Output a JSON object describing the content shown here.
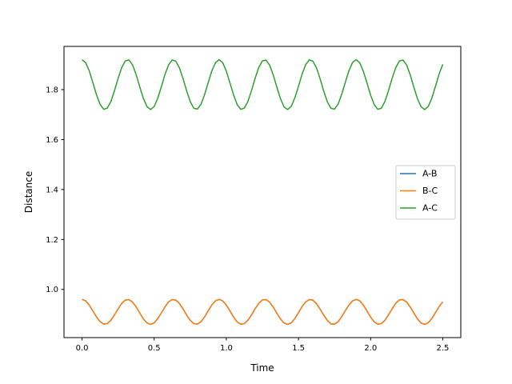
{
  "chart_data": {
    "type": "line",
    "title": "",
    "xlabel": "Time",
    "ylabel": "Distance",
    "xlim": [
      -0.125,
      2.625
    ],
    "ylim": [
      0.807,
      1.973
    ],
    "xticks": [
      0.0,
      0.5,
      1.0,
      1.5,
      2.0,
      2.5
    ],
    "xtick_labels": [
      "0.0",
      "0.5",
      "1.0",
      "1.5",
      "2.0",
      "2.5"
    ],
    "yticks": [
      1.0,
      1.2,
      1.4,
      1.6,
      1.8
    ],
    "ytick_labels": [
      "1.0",
      "1.2",
      "1.4",
      "1.6",
      "1.8"
    ],
    "grid": false,
    "legend": "center-right",
    "x": [
      0,
      0.025,
      0.05,
      0.075,
      0.1,
      0.125,
      0.15,
      0.175,
      0.2,
      0.225,
      0.25,
      0.275,
      0.3,
      0.325,
      0.35,
      0.375,
      0.4,
      0.425,
      0.45,
      0.475,
      0.5,
      0.525,
      0.55,
      0.575,
      0.6,
      0.625,
      0.65,
      0.675,
      0.7,
      0.725,
      0.75,
      0.775,
      0.8,
      0.825,
      0.85,
      0.875,
      0.9,
      0.925,
      0.95,
      0.975,
      1.0,
      1.025,
      1.05,
      1.075,
      1.1,
      1.125,
      1.15,
      1.175,
      1.2,
      1.225,
      1.25,
      1.275,
      1.3,
      1.325,
      1.35,
      1.375,
      1.4,
      1.425,
      1.45,
      1.475,
      1.5,
      1.525,
      1.55,
      1.575,
      1.6,
      1.625,
      1.65,
      1.675,
      1.7,
      1.725,
      1.75,
      1.775,
      1.8,
      1.825,
      1.85,
      1.875,
      1.9,
      1.925,
      1.95,
      1.975,
      2.0,
      2.025,
      2.05,
      2.075,
      2.1,
      2.125,
      2.15,
      2.175,
      2.2,
      2.225,
      2.25,
      2.275,
      2.3,
      2.325,
      2.35,
      2.375,
      2.4,
      2.425,
      2.45,
      2.475,
      2.5
    ],
    "series": [
      {
        "name": "A-B",
        "color": "#1f77b4",
        "values": [
          0.96,
          0.954,
          0.937,
          0.914,
          0.89,
          0.871,
          0.861,
          0.863,
          0.876,
          0.898,
          0.922,
          0.944,
          0.957,
          0.959,
          0.949,
          0.93,
          0.906,
          0.882,
          0.866,
          0.86,
          0.866,
          0.883,
          0.906,
          0.93,
          0.95,
          0.959,
          0.957,
          0.944,
          0.922,
          0.897,
          0.876,
          0.863,
          0.861,
          0.871,
          0.89,
          0.915,
          0.938,
          0.954,
          0.96,
          0.954,
          0.937,
          0.914,
          0.889,
          0.87,
          0.861,
          0.863,
          0.877,
          0.898,
          0.923,
          0.944,
          0.958,
          0.959,
          0.949,
          0.929,
          0.905,
          0.882,
          0.866,
          0.86,
          0.866,
          0.883,
          0.907,
          0.931,
          0.95,
          0.959,
          0.957,
          0.943,
          0.921,
          0.897,
          0.876,
          0.862,
          0.861,
          0.871,
          0.891,
          0.915,
          0.938,
          0.954,
          0.96,
          0.954,
          0.937,
          0.913,
          0.889,
          0.87,
          0.861,
          0.863,
          0.877,
          0.899,
          0.923,
          0.945,
          0.958,
          0.959,
          0.949,
          0.929,
          0.905,
          0.882,
          0.865,
          0.86,
          0.867,
          0.884,
          0.907,
          0.931,
          0.95
        ]
      },
      {
        "name": "B-C",
        "color": "#ff7f0e",
        "values": [
          0.96,
          0.954,
          0.937,
          0.914,
          0.89,
          0.871,
          0.861,
          0.863,
          0.876,
          0.898,
          0.922,
          0.944,
          0.957,
          0.959,
          0.949,
          0.93,
          0.906,
          0.882,
          0.866,
          0.86,
          0.866,
          0.883,
          0.906,
          0.93,
          0.95,
          0.959,
          0.957,
          0.944,
          0.922,
          0.897,
          0.876,
          0.863,
          0.861,
          0.871,
          0.89,
          0.915,
          0.938,
          0.954,
          0.96,
          0.954,
          0.937,
          0.914,
          0.889,
          0.87,
          0.861,
          0.863,
          0.877,
          0.898,
          0.923,
          0.944,
          0.958,
          0.959,
          0.949,
          0.929,
          0.905,
          0.882,
          0.866,
          0.86,
          0.866,
          0.883,
          0.907,
          0.931,
          0.95,
          0.959,
          0.957,
          0.943,
          0.921,
          0.897,
          0.876,
          0.862,
          0.861,
          0.871,
          0.891,
          0.915,
          0.938,
          0.954,
          0.96,
          0.954,
          0.937,
          0.913,
          0.889,
          0.87,
          0.861,
          0.863,
          0.877,
          0.899,
          0.923,
          0.945,
          0.958,
          0.959,
          0.949,
          0.929,
          0.905,
          0.882,
          0.865,
          0.86,
          0.867,
          0.884,
          0.907,
          0.931,
          0.95
        ]
      },
      {
        "name": "A-C",
        "color": "#2ca02c",
        "values": [
          1.92,
          1.908,
          1.875,
          1.828,
          1.78,
          1.741,
          1.721,
          1.726,
          1.752,
          1.796,
          1.845,
          1.888,
          1.915,
          1.919,
          1.899,
          1.86,
          1.811,
          1.765,
          1.732,
          1.72,
          1.732,
          1.766,
          1.812,
          1.861,
          1.899,
          1.919,
          1.914,
          1.887,
          1.844,
          1.795,
          1.752,
          1.725,
          1.722,
          1.742,
          1.781,
          1.829,
          1.876,
          1.908,
          1.92,
          1.908,
          1.874,
          1.827,
          1.779,
          1.74,
          1.721,
          1.726,
          1.753,
          1.797,
          1.846,
          1.889,
          1.915,
          1.918,
          1.898,
          1.859,
          1.81,
          1.764,
          1.731,
          1.72,
          1.733,
          1.767,
          1.813,
          1.862,
          1.9,
          1.919,
          1.914,
          1.887,
          1.843,
          1.794,
          1.751,
          1.725,
          1.722,
          1.742,
          1.782,
          1.83,
          1.876,
          1.909,
          1.92,
          1.907,
          1.873,
          1.826,
          1.778,
          1.74,
          1.721,
          1.726,
          1.754,
          1.798,
          1.847,
          1.889,
          1.915,
          1.918,
          1.898,
          1.858,
          1.809,
          1.763,
          1.731,
          1.72,
          1.733,
          1.767,
          1.814,
          1.863,
          1.901
        ]
      }
    ]
  }
}
